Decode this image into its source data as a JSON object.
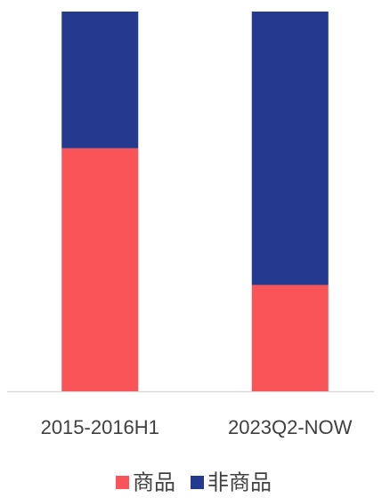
{
  "chart_data": {
    "type": "stacked_bar",
    "categories": [
      "2015-2016H1",
      "2023Q2-NOW"
    ],
    "series": [
      {
        "name": "商品",
        "color": "#f95458",
        "values": [
          64,
          28
        ]
      },
      {
        "name": "非商品",
        "color": "#233a8f",
        "values": [
          36,
          72
        ]
      }
    ],
    "ylim": [
      0,
      100
    ]
  }
}
